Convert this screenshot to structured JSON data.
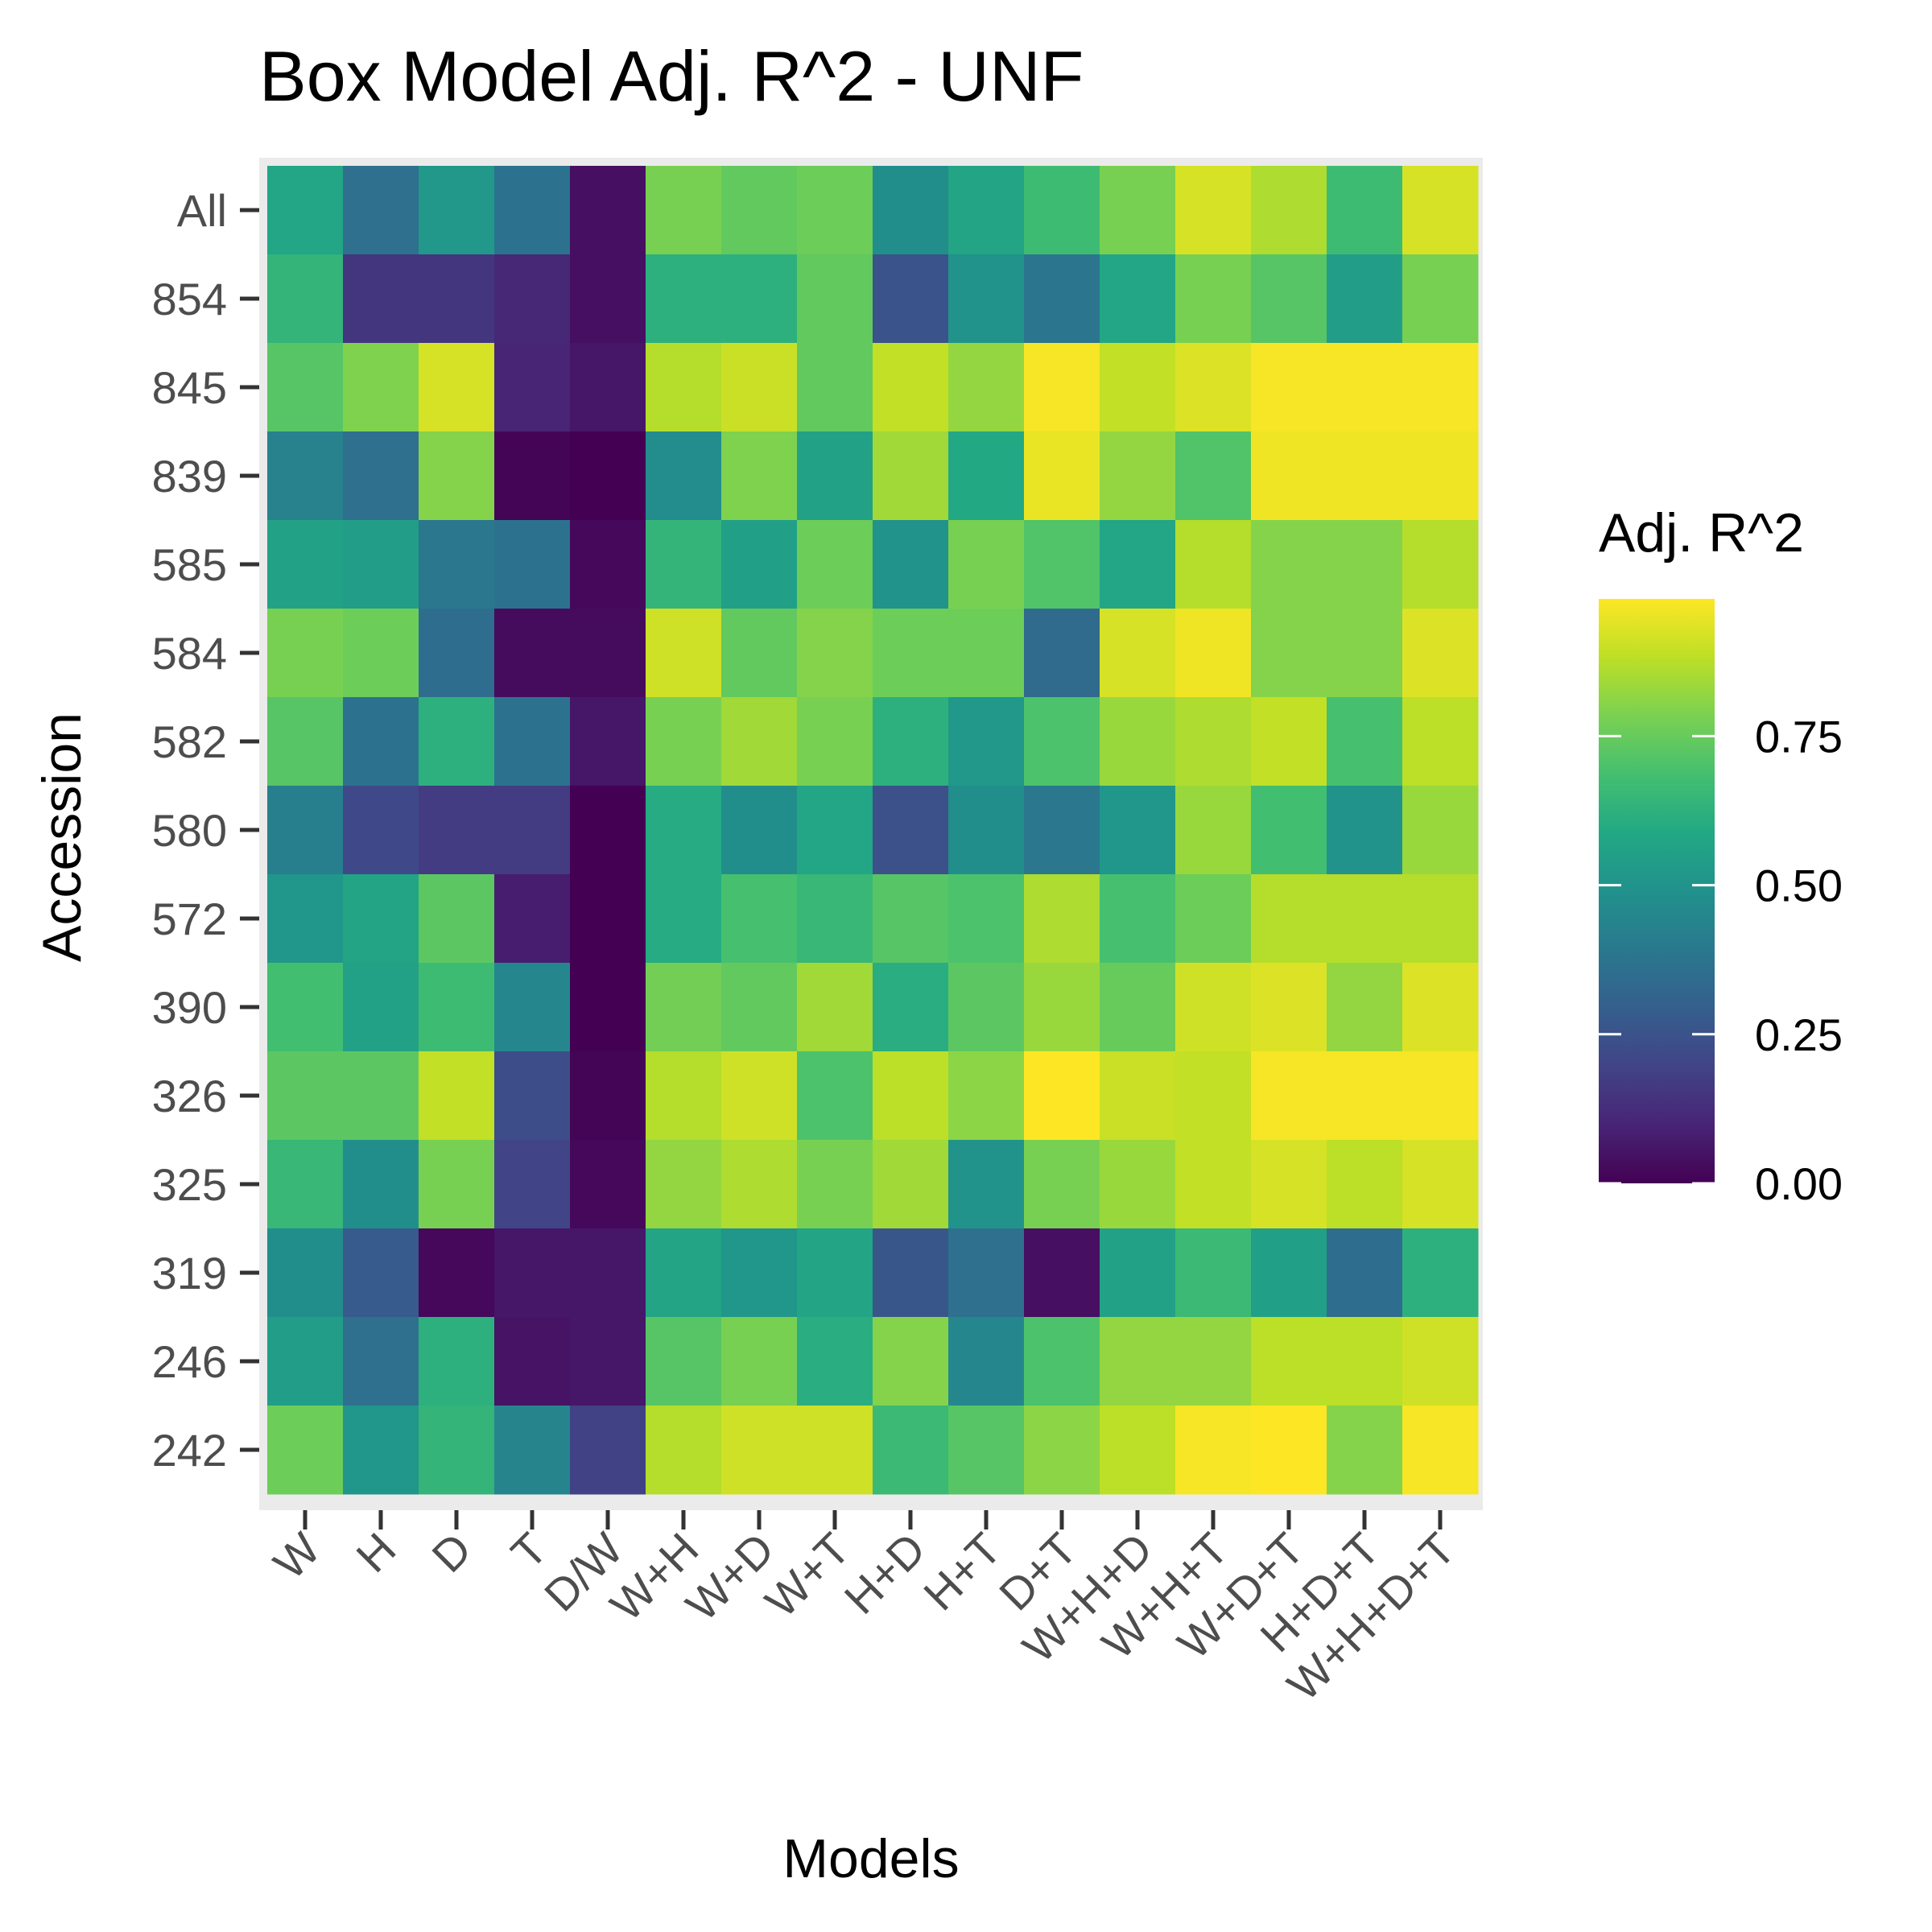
{
  "chart_data": {
    "type": "heatmap",
    "title": "Box Model Adj. R^2 - UNF",
    "xlabel": "Models",
    "ylabel": "Accession",
    "x_categories": [
      "W",
      "H",
      "D",
      "T",
      "D/W",
      "W+H",
      "W+D",
      "W+T",
      "H+D",
      "H+T",
      "D+T",
      "W+H+D",
      "W+H+T",
      "W+D+T",
      "H+D+T",
      "W+H+D+T"
    ],
    "y_categories": [
      "All",
      "854",
      "845",
      "839",
      "585",
      "584",
      "582",
      "580",
      "572",
      "390",
      "326",
      "325",
      "319",
      "246",
      "242"
    ],
    "values": [
      [
        0.58,
        0.36,
        0.52,
        0.37,
        0.04,
        0.78,
        0.74,
        0.76,
        0.48,
        0.57,
        0.67,
        0.78,
        0.92,
        0.86,
        0.67,
        0.92
      ],
      [
        0.64,
        0.15,
        0.15,
        0.11,
        0.04,
        0.62,
        0.62,
        0.74,
        0.25,
        0.5,
        0.38,
        0.58,
        0.78,
        0.72,
        0.54,
        0.78
      ],
      [
        0.72,
        0.79,
        0.92,
        0.1,
        0.06,
        0.87,
        0.9,
        0.74,
        0.89,
        0.82,
        0.97,
        0.89,
        0.93,
        0.97,
        0.97,
        0.97
      ],
      [
        0.43,
        0.36,
        0.8,
        0.01,
        0.0,
        0.47,
        0.79,
        0.56,
        0.84,
        0.59,
        0.95,
        0.82,
        0.71,
        0.96,
        0.96,
        0.96
      ],
      [
        0.56,
        0.54,
        0.39,
        0.37,
        0.02,
        0.64,
        0.55,
        0.76,
        0.5,
        0.78,
        0.71,
        0.58,
        0.87,
        0.8,
        0.8,
        0.87
      ],
      [
        0.78,
        0.76,
        0.35,
        0.03,
        0.03,
        0.91,
        0.74,
        0.8,
        0.76,
        0.76,
        0.34,
        0.92,
        0.96,
        0.8,
        0.8,
        0.93
      ],
      [
        0.72,
        0.37,
        0.62,
        0.37,
        0.06,
        0.78,
        0.84,
        0.78,
        0.62,
        0.52,
        0.7,
        0.83,
        0.86,
        0.89,
        0.69,
        0.88
      ],
      [
        0.42,
        0.21,
        0.17,
        0.17,
        0.0,
        0.6,
        0.48,
        0.58,
        0.24,
        0.48,
        0.39,
        0.51,
        0.83,
        0.68,
        0.5,
        0.83
      ],
      [
        0.51,
        0.57,
        0.73,
        0.08,
        0.0,
        0.6,
        0.69,
        0.65,
        0.72,
        0.7,
        0.86,
        0.69,
        0.76,
        0.87,
        0.87,
        0.87
      ],
      [
        0.68,
        0.56,
        0.67,
        0.45,
        0.0,
        0.77,
        0.74,
        0.84,
        0.61,
        0.73,
        0.83,
        0.75,
        0.91,
        0.93,
        0.82,
        0.93
      ],
      [
        0.73,
        0.73,
        0.89,
        0.23,
        0.01,
        0.87,
        0.91,
        0.7,
        0.88,
        0.81,
        0.98,
        0.9,
        0.89,
        0.97,
        0.97,
        0.97
      ],
      [
        0.65,
        0.48,
        0.78,
        0.2,
        0.02,
        0.82,
        0.86,
        0.78,
        0.84,
        0.5,
        0.78,
        0.83,
        0.89,
        0.92,
        0.88,
        0.92
      ],
      [
        0.48,
        0.28,
        0.02,
        0.06,
        0.06,
        0.57,
        0.51,
        0.57,
        0.26,
        0.36,
        0.04,
        0.56,
        0.66,
        0.55,
        0.35,
        0.62
      ],
      [
        0.54,
        0.36,
        0.62,
        0.05,
        0.06,
        0.72,
        0.78,
        0.61,
        0.8,
        0.45,
        0.7,
        0.82,
        0.82,
        0.88,
        0.88,
        0.91
      ],
      [
        0.76,
        0.51,
        0.64,
        0.44,
        0.19,
        0.87,
        0.91,
        0.91,
        0.66,
        0.72,
        0.81,
        0.88,
        0.97,
        0.98,
        0.8,
        0.97
      ]
    ],
    "legend": {
      "title": "Adj. R^2",
      "placement": "right",
      "ticks": [
        "0.00",
        "0.25",
        "0.50",
        "0.75"
      ],
      "tick_values": [
        0.0,
        0.25,
        0.5,
        0.75
      ],
      "range": [
        0.0,
        0.98
      ]
    },
    "colormap": "viridis"
  }
}
